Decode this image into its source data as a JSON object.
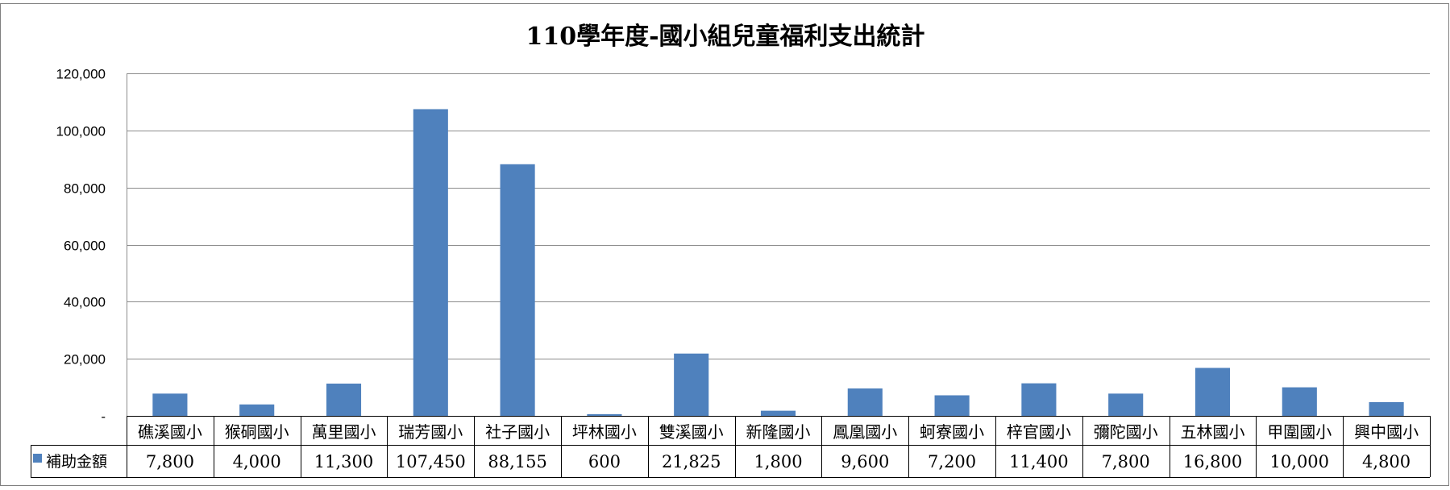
{
  "chart_data": {
    "type": "bar",
    "title": "110學年度-國小組兒童福利支出統計",
    "categories": [
      "礁溪國小",
      "猴硐國小",
      "萬里國小",
      "瑞芳國小",
      "社子國小",
      "坪林國小",
      "雙溪國小",
      "新隆國小",
      "鳳凰國小",
      "蚵寮國小",
      "梓官國小",
      "彌陀國小",
      "五林國小",
      "甲圍國小",
      "興中國小"
    ],
    "series": [
      {
        "name": "補助金額",
        "values": [
          7800,
          4000,
          11300,
          107450,
          88155,
          600,
          21825,
          1800,
          9600,
          7200,
          11400,
          7800,
          16800,
          10000,
          4800
        ],
        "value_labels": [
          "7,800",
          "4,000",
          "11,300",
          "107,450",
          "88,155",
          "600",
          "21,825",
          "1,800",
          "9,600",
          "7,200",
          "11,400",
          "7,800",
          "16,800",
          "10,000",
          "4,800"
        ],
        "color": "#4f81bd"
      }
    ],
    "ylim": [
      0,
      120000
    ],
    "yticks": [
      0,
      20000,
      40000,
      60000,
      80000,
      100000,
      120000
    ],
    "ytick_labels": [
      "-",
      "20,000",
      "40,000",
      "60,000",
      "80,000",
      "100,000",
      "120,000"
    ],
    "grid": true,
    "legend": "data-table-left",
    "data_table": true,
    "colors": {
      "bar": "#4f81bd",
      "grid": "#8c8c8c",
      "border": "#7f7f7f",
      "table_line": "#000000"
    }
  }
}
